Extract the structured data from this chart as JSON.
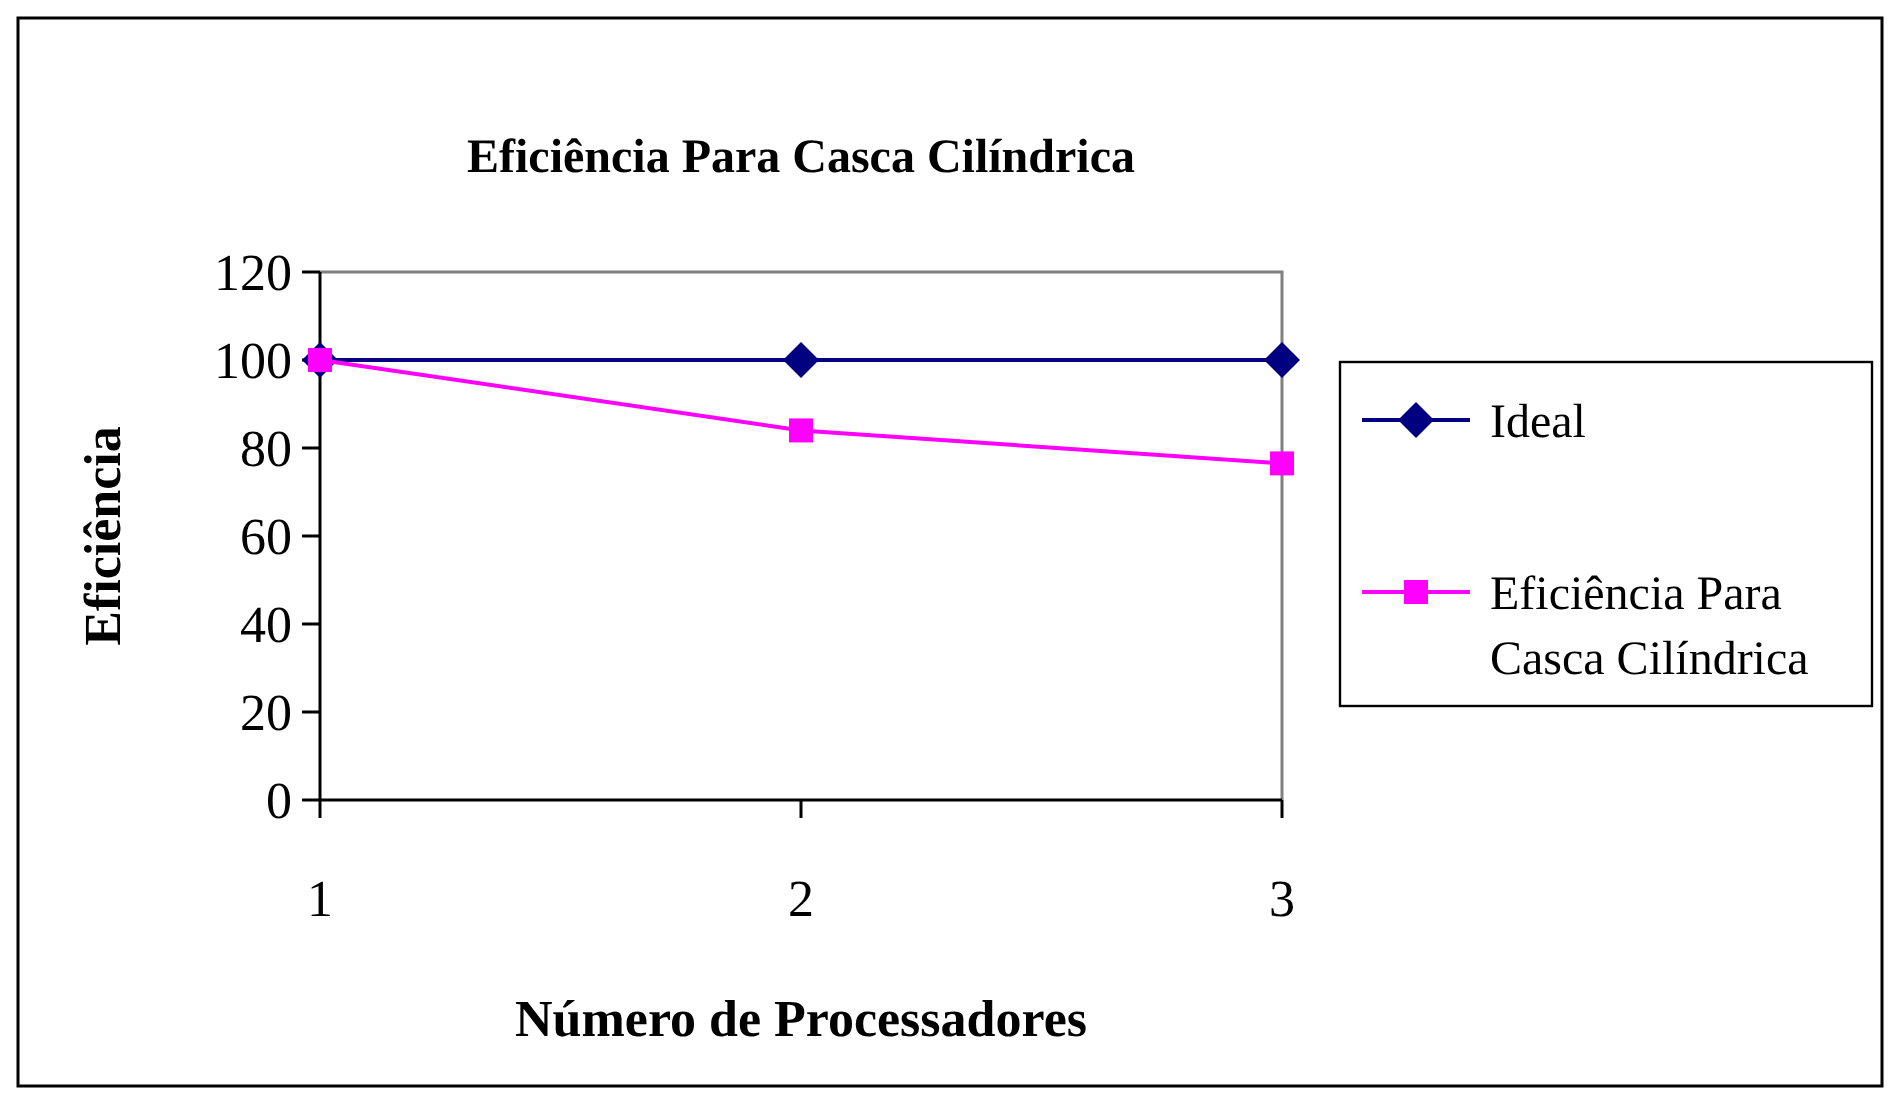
{
  "chart_data": {
    "type": "line",
    "title": "Eficiência Para Casca Cilíndrica",
    "xlabel": "Número de Processadores",
    "ylabel": "Eficiência",
    "categories": [
      "1",
      "2",
      "3"
    ],
    "ylim": [
      0,
      120
    ],
    "yticks": [
      0,
      20,
      40,
      60,
      80,
      100,
      120
    ],
    "legend": "right",
    "grid": false,
    "series": [
      {
        "name": "Ideal",
        "color": "#000080",
        "marker": "diamond",
        "values": [
          100,
          100,
          100
        ]
      },
      {
        "name": "Eficiência Para Casca Cilíndrica",
        "color": "#ff00ff",
        "marker": "square",
        "values": [
          100,
          84,
          76.5
        ]
      }
    ]
  }
}
